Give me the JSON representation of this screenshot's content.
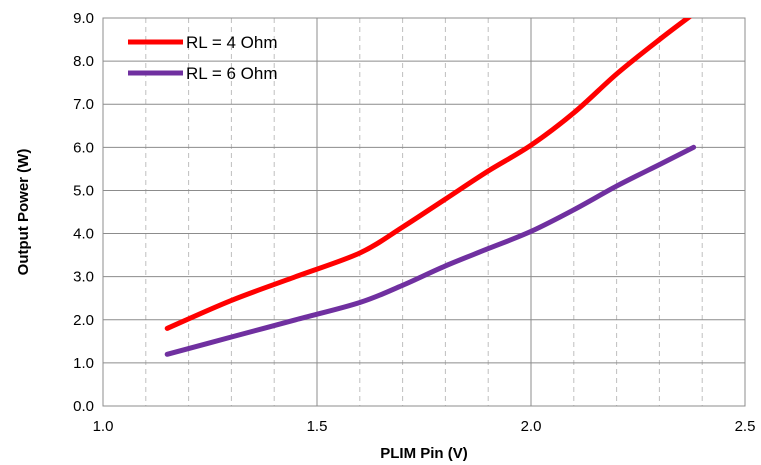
{
  "chart_data": {
    "type": "line",
    "title": "",
    "xlabel": "PLIM Pin (V)",
    "ylabel": "Output Power (W)",
    "xlim": [
      1.0,
      2.5
    ],
    "ylim": [
      0.0,
      9.0
    ],
    "x_major_ticks": [
      1.0,
      1.5,
      2.0,
      2.5
    ],
    "x_major_tick_labels": [
      "1.0",
      "1.5",
      "2.0",
      "2.5"
    ],
    "x_minor_step": 0.1,
    "y_ticks": [
      0.0,
      1.0,
      2.0,
      3.0,
      4.0,
      5.0,
      6.0,
      7.0,
      8.0,
      9.0
    ],
    "y_tick_labels": [
      "0.0",
      "1.0",
      "2.0",
      "3.0",
      "4.0",
      "5.0",
      "6.0",
      "7.0",
      "8.0",
      "9.0"
    ],
    "grid": true,
    "legend_position": "top-left",
    "series": [
      {
        "name": "RL = 4 Ohm",
        "color": "#ff0000",
        "x": [
          1.15,
          1.3,
          1.45,
          1.6,
          1.7,
          1.8,
          1.9,
          2.0,
          2.1,
          2.2,
          2.3,
          2.38
        ],
        "y": [
          1.8,
          2.45,
          3.0,
          3.55,
          4.15,
          4.8,
          5.45,
          6.05,
          6.8,
          7.7,
          8.5,
          9.1
        ]
      },
      {
        "name": "RL = 6 Ohm",
        "color": "#7030a0",
        "x": [
          1.15,
          1.3,
          1.45,
          1.6,
          1.7,
          1.8,
          1.9,
          2.0,
          2.1,
          2.2,
          2.3,
          2.38
        ],
        "y": [
          1.2,
          1.6,
          2.0,
          2.4,
          2.8,
          3.25,
          3.65,
          4.05,
          4.55,
          5.1,
          5.6,
          6.0
        ]
      }
    ]
  }
}
